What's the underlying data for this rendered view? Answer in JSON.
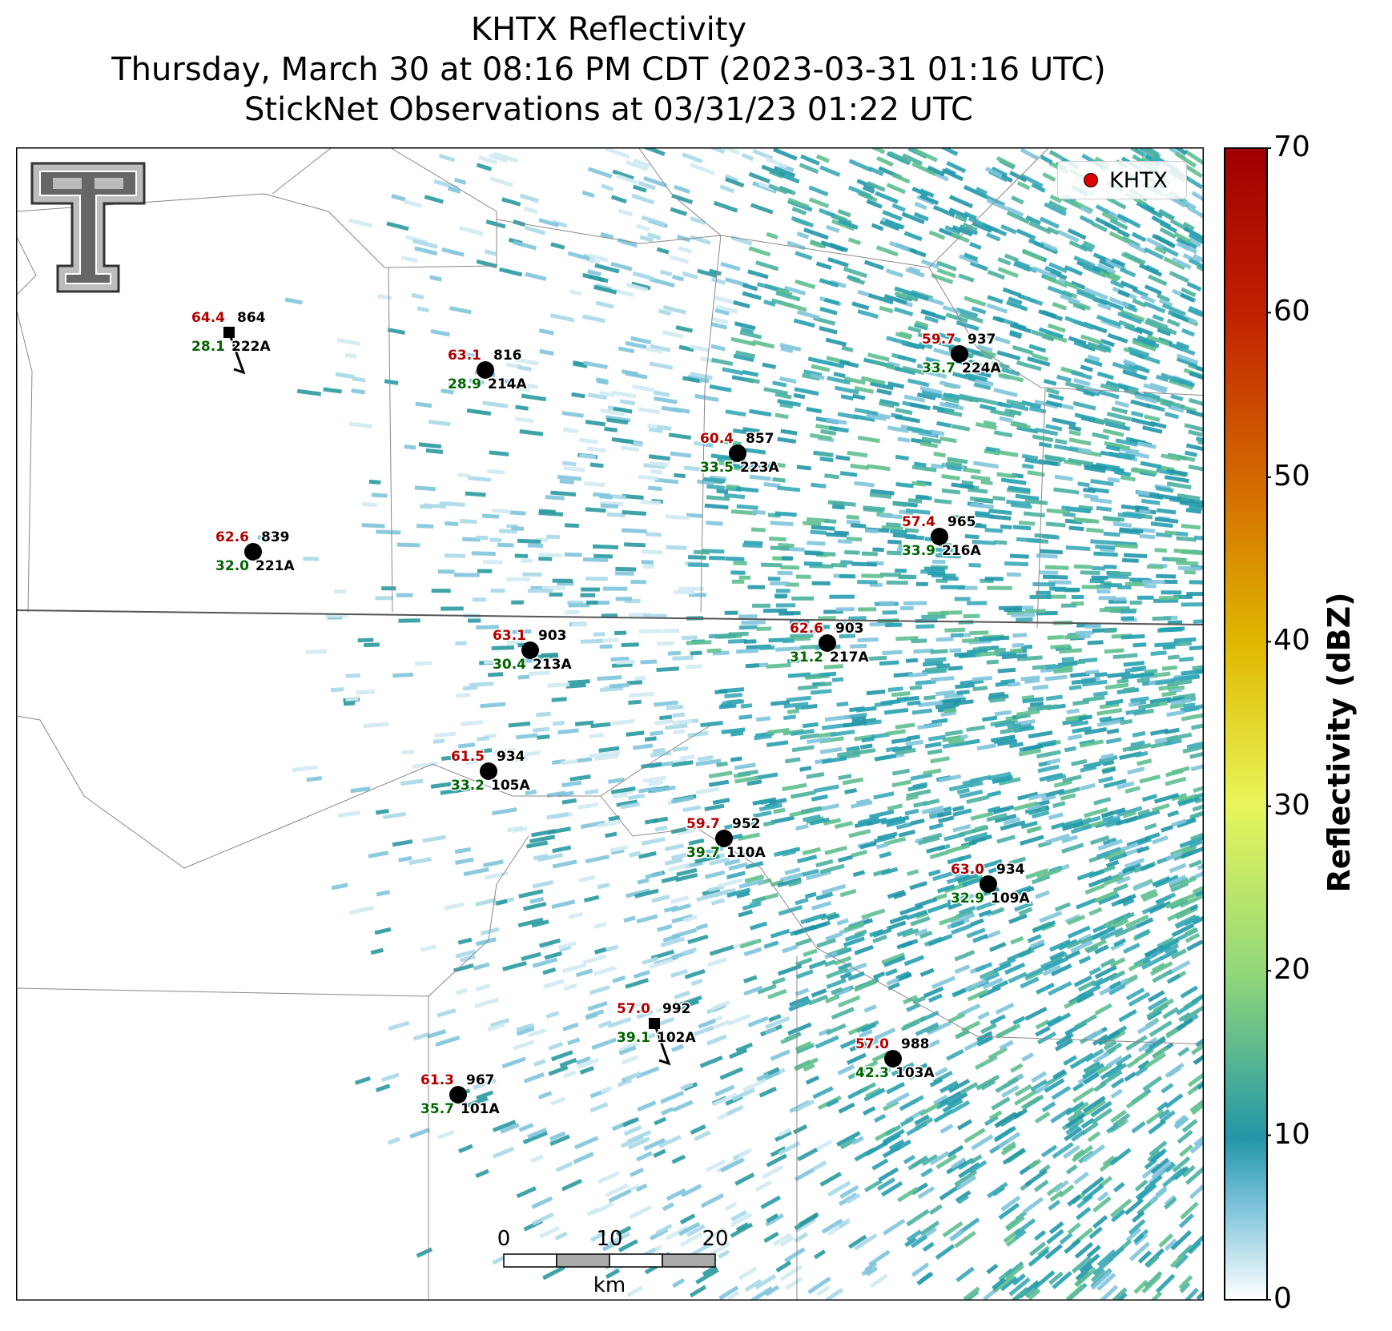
{
  "title": {
    "line1": "KHTX Reflectivity",
    "line2": "Thursday, March 30 at 08:16 PM CDT (2023-03-31 01:16 UTC)",
    "line3": "StickNet Observations at 03/31/23 01:22 UTC"
  },
  "legend": {
    "label": "KHTX",
    "marker_color": "#e00000"
  },
  "colorbar": {
    "label": "Reflectivity (dBZ)",
    "ticks": [
      "0",
      "10",
      "20",
      "30",
      "40",
      "50",
      "60",
      "70"
    ],
    "min": 0,
    "max": 70,
    "colors": [
      "#ffffff",
      "#2196a8",
      "#8fd67a",
      "#e8f55a",
      "#e0b800",
      "#d46a00",
      "#c02000",
      "#a00000"
    ]
  },
  "scalebar": {
    "ticks": [
      "0",
      "10",
      "20"
    ],
    "unit": "km"
  },
  "logo": "texas-tech-double-t-logo",
  "stations": [
    {
      "id": "222A",
      "temp": "64.4",
      "dew": "28.1",
      "pressure": "864",
      "marker": "square"
    },
    {
      "id": "214A",
      "temp": "63.1",
      "dew": "28.9",
      "pressure": "816",
      "marker": "circle"
    },
    {
      "id": "224A",
      "temp": "59.7",
      "dew": "33.7",
      "pressure": "937",
      "marker": "circle"
    },
    {
      "id": "223A",
      "temp": "60.4",
      "dew": "33.5",
      "pressure": "857",
      "marker": "circle"
    },
    {
      "id": "221A",
      "temp": "62.6",
      "dew": "32.0",
      "pressure": "839",
      "marker": "circle"
    },
    {
      "id": "216A",
      "temp": "57.4",
      "dew": "33.9",
      "pressure": "965",
      "marker": "circle"
    },
    {
      "id": "213A",
      "temp": "63.1",
      "dew": "30.4",
      "pressure": "903",
      "marker": "circle"
    },
    {
      "id": "217A",
      "temp": "62.6",
      "dew": "31.2",
      "pressure": "903",
      "marker": "circle"
    },
    {
      "id": "105A",
      "temp": "61.5",
      "dew": "33.2",
      "pressure": "934",
      "marker": "circle"
    },
    {
      "id": "110A",
      "temp": "59.7",
      "dew": "39.7",
      "pressure": "952",
      "marker": "circle"
    },
    {
      "id": "109A",
      "temp": "63.0",
      "dew": "32.9",
      "pressure": "934",
      "marker": "circle"
    },
    {
      "id": "102A",
      "temp": "57.0",
      "dew": "39.1",
      "pressure": "992",
      "marker": "square"
    },
    {
      "id": "103A",
      "temp": "57.0",
      "dew": "42.3",
      "pressure": "988",
      "marker": "circle"
    },
    {
      "id": "101A",
      "temp": "61.3",
      "dew": "35.7",
      "pressure": "967",
      "marker": "circle"
    }
  ]
}
